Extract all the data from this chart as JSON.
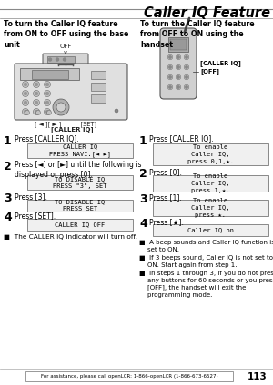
{
  "title": "Caller IQ Feature",
  "page_num": "113",
  "footer_text": "For assistance, please call openLCR: 1-866-openLCR (1-866-673-6527)",
  "left_heading": "To turn the Caller IQ feature\nfrom ON to OFF using the base\nunit",
  "right_heading": "To turn the Caller IQ feature\nfrom OFF to ON using the\nhandset",
  "left_steps": [
    {
      "num": "1",
      "text": "Press [CALLER IQ]."
    },
    {
      "num": "2",
      "text": "Press [◄] or [►] until the following is\ndisplayed or press [0]."
    },
    {
      "num": "3",
      "text": "Press [3]."
    },
    {
      "num": "4",
      "text": "Press [SET]."
    }
  ],
  "left_boxes": [
    "CALLER IQ\nPRESS NAVI.[◄ ►]",
    "TO DISABLE IQ\nPRESS \"3\", SET",
    "TO DISABLE IQ\nPRESS SET",
    "CALLER IQ OFF"
  ],
  "left_bullet": "■  The CALLER IQ indicator will turn off.",
  "right_steps": [
    {
      "num": "1",
      "text": "Press [CALLER IQ]."
    },
    {
      "num": "2",
      "text": "Press [0]."
    },
    {
      "num": "3",
      "text": "Press [1]."
    },
    {
      "num": "4",
      "text": "Press [★]."
    }
  ],
  "right_boxes": [
    "To enable\nCaller IQ,\npress 0,1,★.",
    "To enable\nCaller IQ,\npress 1,★.",
    "To enable\nCaller IQ,\npress ★.",
    "Caller IQ on"
  ],
  "right_label1": "[CALLER IQ]",
  "right_label2": "[OFF]",
  "right_bullets": [
    "■  A beep sounds and Caller IQ function is\n    set to ON.",
    "■  If 3 beeps sound, Caller IQ is not set to\n    ON. Start again from step 1.",
    "■  In steps 1 through 3, if you do not press\n    any buttons for 60 seconds or you press\n    [OFF], the handset will exit the\n    programming mode."
  ],
  "bg_color": "#ffffff",
  "box_bg": "#f0f0f0",
  "box_border": "#777777",
  "text_color": "#000000",
  "mono_font": "monospace"
}
